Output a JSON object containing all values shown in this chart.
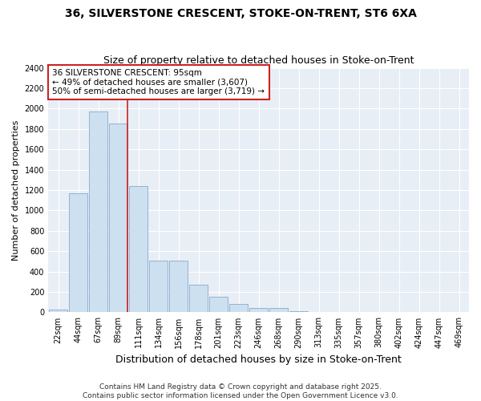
{
  "title1": "36, SILVERSTONE CRESCENT, STOKE-ON-TRENT, ST6 6XA",
  "title2": "Size of property relative to detached houses in Stoke-on-Trent",
  "xlabel": "Distribution of detached houses by size in Stoke-on-Trent",
  "ylabel": "Number of detached properties",
  "footer1": "Contains HM Land Registry data © Crown copyright and database right 2025.",
  "footer2": "Contains public sector information licensed under the Open Government Licence v3.0.",
  "bar_labels": [
    "22sqm",
    "44sqm",
    "67sqm",
    "89sqm",
    "111sqm",
    "134sqm",
    "156sqm",
    "178sqm",
    "201sqm",
    "223sqm",
    "246sqm",
    "268sqm",
    "290sqm",
    "313sqm",
    "335sqm",
    "357sqm",
    "380sqm",
    "402sqm",
    "424sqm",
    "447sqm",
    "469sqm"
  ],
  "bar_values": [
    25,
    1170,
    1970,
    1850,
    1240,
    510,
    510,
    270,
    155,
    80,
    40,
    40,
    10,
    5,
    3,
    2,
    2,
    2,
    1,
    2,
    2
  ],
  "bar_color": "#cce0f0",
  "bar_edge_color": "#88aacc",
  "annotation_text_line1": "36 SILVERSTONE CRESCENT: 95sqm",
  "annotation_text_line2": "← 49% of detached houses are smaller (3,607)",
  "annotation_text_line3": "50% of semi-detached houses are larger (3,719) →",
  "vline_bin_index": 3,
  "vline_color": "#cc2222",
  "box_edge_color": "#cc2222",
  "ylim": [
    0,
    2400
  ],
  "yticks": [
    0,
    200,
    400,
    600,
    800,
    1000,
    1200,
    1400,
    1600,
    1800,
    2000,
    2200,
    2400
  ],
  "fig_bg_color": "#ffffff",
  "plot_bg_color": "#e8eef5",
  "grid_color": "#ffffff",
  "title_fontsize": 10,
  "subtitle_fontsize": 9,
  "xlabel_fontsize": 9,
  "ylabel_fontsize": 8,
  "tick_fontsize": 7,
  "annotation_fontsize": 7.5,
  "footer_fontsize": 6.5
}
